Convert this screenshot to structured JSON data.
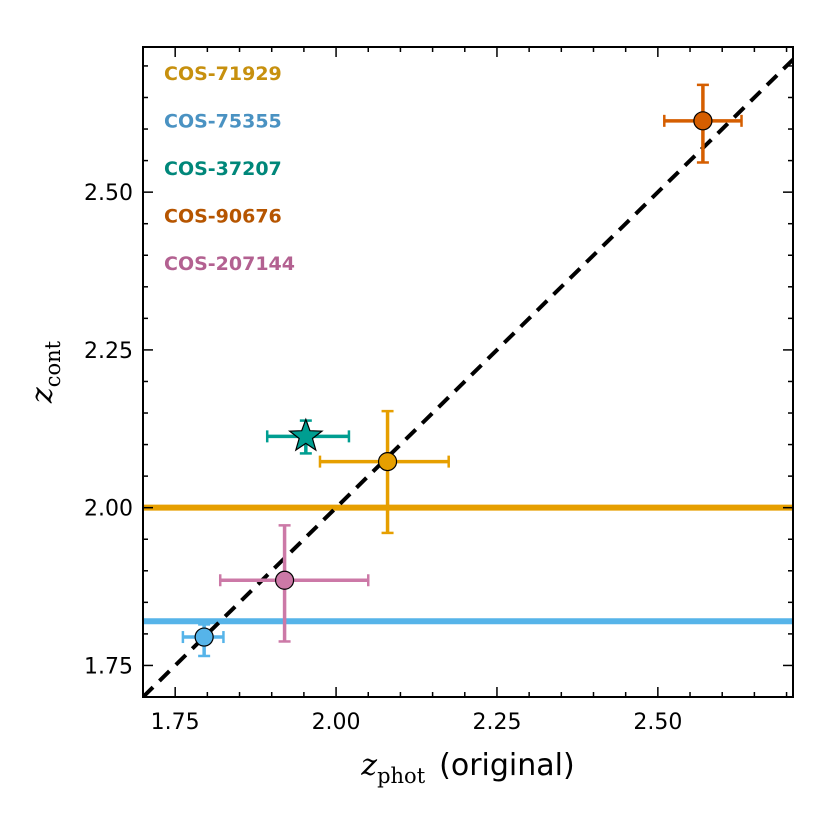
{
  "chart_data": {
    "type": "scatter",
    "xlim": [
      1.7,
      2.71
    ],
    "ylim": [
      1.7,
      2.73
    ],
    "xticks": [
      1.75,
      2.0,
      2.25,
      2.5
    ],
    "yticks": [
      1.75,
      2.0,
      2.25,
      2.5
    ],
    "xtick_labels": [
      "1.75",
      "2.00",
      "2.25",
      "2.50"
    ],
    "ytick_labels": [
      "1.75",
      "2.00",
      "2.25",
      "2.50"
    ],
    "xlabel": {
      "symbol": "z",
      "subscript": "phot",
      "suffix": "(original)"
    },
    "ylabel": {
      "symbol": "z",
      "subscript": "cont"
    },
    "one_to_one_line": true,
    "hlines": [
      {
        "y": 2.0,
        "color": "#E69F00"
      },
      {
        "y": 1.82,
        "color": "#56B4E9"
      }
    ],
    "series": [
      {
        "name": "COS-71929",
        "label_color": "#C7900E",
        "point_color": "#E69F00",
        "marker": "circle",
        "x": 2.08,
        "y": 2.073,
        "xerr": [
          0.105,
          0.095
        ],
        "yerr": [
          0.113,
          0.08
        ]
      },
      {
        "name": "COS-75355",
        "label_color": "#4A92C2",
        "point_color": "#56B4E9",
        "marker": "circle",
        "x": 1.795,
        "y": 1.795,
        "xerr": [
          0.033,
          0.03
        ],
        "yerr": [
          0.03,
          0.02
        ]
      },
      {
        "name": "COS-37207",
        "label_color": "#00877A",
        "point_color": "#009E91",
        "marker": "star",
        "x": 1.953,
        "y": 2.113,
        "xerr": [
          0.06,
          0.067
        ],
        "yerr": [
          0.027,
          0.025
        ]
      },
      {
        "name": "COS-90676",
        "label_color": "#B65500",
        "point_color": "#D55E00",
        "marker": "circle",
        "x": 2.57,
        "y": 2.613,
        "xerr": [
          0.06,
          0.06
        ],
        "yerr": [
          0.066,
          0.057
        ]
      },
      {
        "name": "COS-207144",
        "label_color": "#B36191",
        "point_color": "#CC79A7",
        "marker": "circle",
        "x": 1.92,
        "y": 1.885,
        "xerr": [
          0.1,
          0.13
        ],
        "yerr": [
          0.097,
          0.087
        ]
      }
    ]
  }
}
